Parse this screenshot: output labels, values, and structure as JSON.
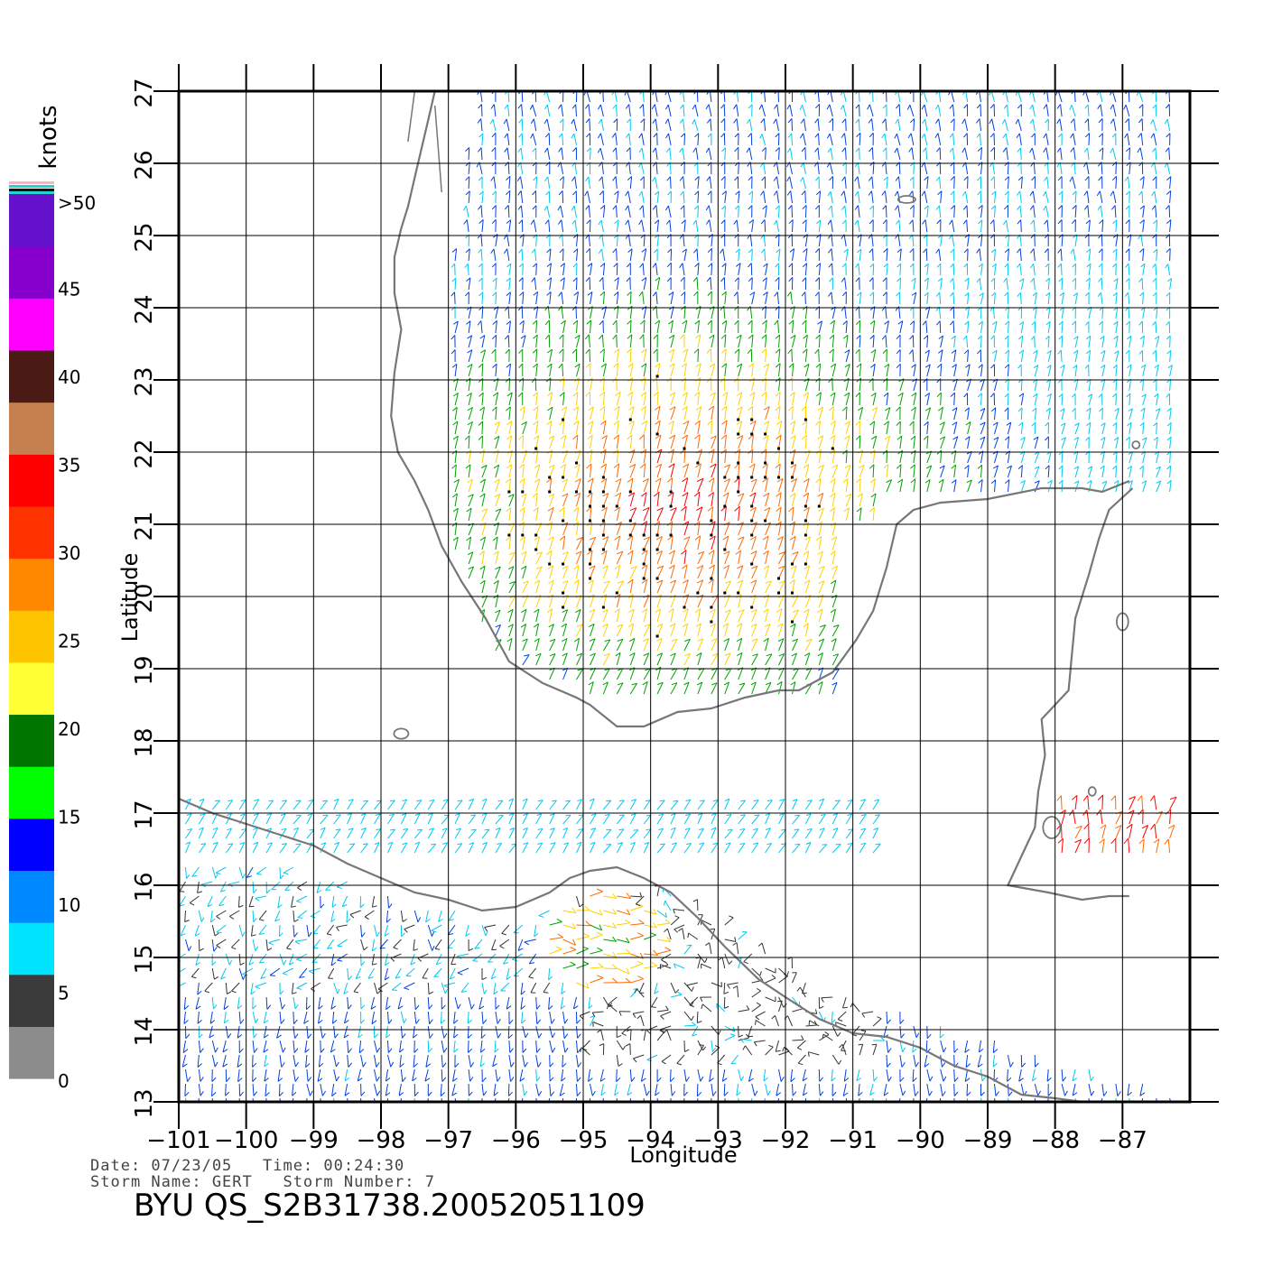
{
  "legend": {
    "units": "knots",
    "band_colors": [
      "#8c8c8c",
      "#3b3b3b",
      "#00e5ff",
      "#0088ff",
      "#0000ff",
      "#00ff00",
      "#007500",
      "#ffff33",
      "#ffc400",
      "#ff8800",
      "#ff3300",
      "#ff0000",
      "#c68050",
      "#4a1a14",
      "#ff00ff",
      "#8800cc",
      "#6611cc"
    ],
    "labels": [
      "0",
      "5",
      "10",
      "15",
      "20",
      "25",
      "30",
      "35",
      "40",
      "45",
      ">50"
    ],
    "speed_colors": [
      {
        "max": 5,
        "color": "#333333"
      },
      {
        "max": 10,
        "color": "#00c8f0"
      },
      {
        "max": 15,
        "color": "#0040e0"
      },
      {
        "max": 20,
        "color": "#00a000"
      },
      {
        "max": 25,
        "color": "#ffd000"
      },
      {
        "max": 30,
        "color": "#ff6a00"
      },
      {
        "max": 35,
        "color": "#ff0000"
      }
    ]
  },
  "axes": {
    "xlabel": "Longitude",
    "ylabel": "Latitude",
    "lon_ticks": [
      "-101",
      "-100",
      "-99",
      "-98",
      "-97",
      "-96",
      "-95",
      "-94",
      "-93",
      "-92",
      "-91",
      "-90",
      "-89",
      "-88",
      "-87"
    ],
    "lat_ticks": [
      "13",
      "14",
      "15",
      "16",
      "17",
      "18",
      "19",
      "20",
      "21",
      "22",
      "23",
      "24",
      "25",
      "26",
      "27"
    ],
    "lon_range": [
      -101,
      -86
    ],
    "lat_range": [
      13,
      27
    ]
  },
  "info": {
    "date_line": "Date: 07/23/05   Time: 00:24:30",
    "storm_line": "Storm Name: GERT   Storm Number: 7",
    "product_id": "BYU QS_S2B31738.20052051109"
  },
  "colors": {
    "coastline": "#777777",
    "grid": "#000000"
  }
}
